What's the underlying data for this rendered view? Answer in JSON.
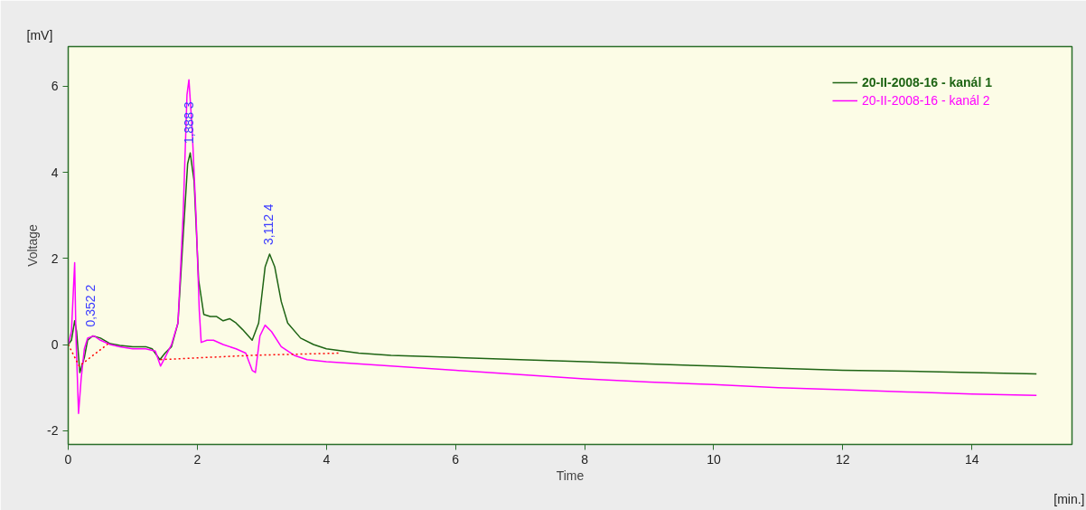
{
  "chart_data": {
    "type": "line",
    "xlabel": "Time",
    "ylabel": "Voltage",
    "x": [
      0,
      0.05,
      0.1,
      0.13,
      0.18,
      0.25,
      0.3,
      0.38,
      0.5,
      0.65,
      0.8,
      1.0,
      1.2,
      1.3,
      1.42,
      1.5,
      1.6,
      1.7,
      1.78,
      1.85,
      1.89,
      1.95,
      2.02,
      2.1,
      2.2,
      2.3,
      2.4,
      2.5,
      2.6,
      2.7,
      2.85,
      2.95,
      3.05,
      3.12,
      3.2,
      3.3,
      3.4,
      3.6,
      3.8,
      4.0,
      4.5,
      5,
      6,
      7,
      8,
      9,
      10,
      11,
      12,
      13,
      14,
      15
    ],
    "series": [
      {
        "name": "20-II-2008-16 - kanál 1",
        "color": "#1e6414",
        "values": [
          0,
          0.1,
          0.55,
          0.3,
          -0.65,
          -0.3,
          0.1,
          0.2,
          0.15,
          0.02,
          -0.02,
          -0.05,
          -0.05,
          -0.1,
          -0.35,
          -0.2,
          -0.05,
          0.5,
          2.5,
          4.2,
          4.45,
          3.8,
          1.5,
          0.7,
          0.65,
          0.65,
          0.55,
          0.6,
          0.5,
          0.35,
          0.1,
          0.5,
          1.8,
          2.1,
          1.8,
          1.0,
          0.5,
          0.15,
          0.0,
          -0.1,
          -0.2,
          -0.25,
          -0.3,
          -0.35,
          -0.4,
          -0.45,
          -0.5,
          -0.55,
          -0.6,
          -0.62,
          -0.65,
          -0.68
        ]
      },
      {
        "name": "20-II-2008-16 - kanál 2",
        "color": "#ff00ff",
        "x": [
          0,
          0.05,
          0.1,
          0.12,
          0.16,
          0.2,
          0.25,
          0.3,
          0.4,
          0.5,
          0.65,
          0.8,
          1.0,
          1.2,
          1.35,
          1.43,
          1.5,
          1.6,
          1.7,
          1.78,
          1.84,
          1.87,
          1.92,
          1.98,
          2.03,
          2.06,
          2.15,
          2.25,
          2.4,
          2.6,
          2.75,
          2.85,
          2.9,
          2.97,
          3.05,
          3.15,
          3.3,
          3.5,
          3.7,
          4,
          5,
          6,
          7,
          8,
          9,
          10,
          11,
          12,
          13,
          14,
          15
        ],
        "values": [
          0,
          0.3,
          1.9,
          0.2,
          -1.6,
          -0.8,
          -0.1,
          0.15,
          0.2,
          0.1,
          0.0,
          -0.05,
          -0.1,
          -0.1,
          -0.15,
          -0.5,
          -0.3,
          0.0,
          0.5,
          3.0,
          5.8,
          6.15,
          5.0,
          3.0,
          0.8,
          0.05,
          0.1,
          0.1,
          0.0,
          -0.1,
          -0.2,
          -0.6,
          -0.65,
          0.2,
          0.45,
          0.3,
          -0.05,
          -0.25,
          -0.35,
          -0.4,
          -0.5,
          -0.6,
          -0.7,
          -0.8,
          -0.87,
          -0.93,
          -1.0,
          -1.05,
          -1.1,
          -1.15,
          -1.18
        ]
      },
      {
        "color": "#ff0000",
        "line_style": "dotted",
        "x": [
          0,
          0.17,
          0.62,
          1.0,
          1.43,
          2.85,
          4.2
        ],
        "values": [
          0,
          -0.5,
          0.02,
          null,
          -0.35,
          -0.25,
          -0.2
        ]
      }
    ],
    "annotations": [
      {
        "text": "0,352  2",
        "x": 0.352,
        "y": 0.2
      },
      {
        "text": "1,888  3",
        "x": 1.888,
        "y": 4.45
      },
      {
        "text": "3,112  4",
        "x": 3.112,
        "y": 2.1
      },
      "[mV]",
      "[min.]"
    ],
    "xlim": [
      0,
      15.55
    ],
    "ylim": [
      -2.32,
      6.92
    ],
    "xticks": [
      0,
      2,
      4,
      6,
      8,
      10,
      12,
      14
    ],
    "yticks": [
      -2,
      0,
      2,
      4,
      6
    ],
    "grid": false,
    "legend": "top right",
    "line_style": "solid",
    "marker": "none"
  }
}
